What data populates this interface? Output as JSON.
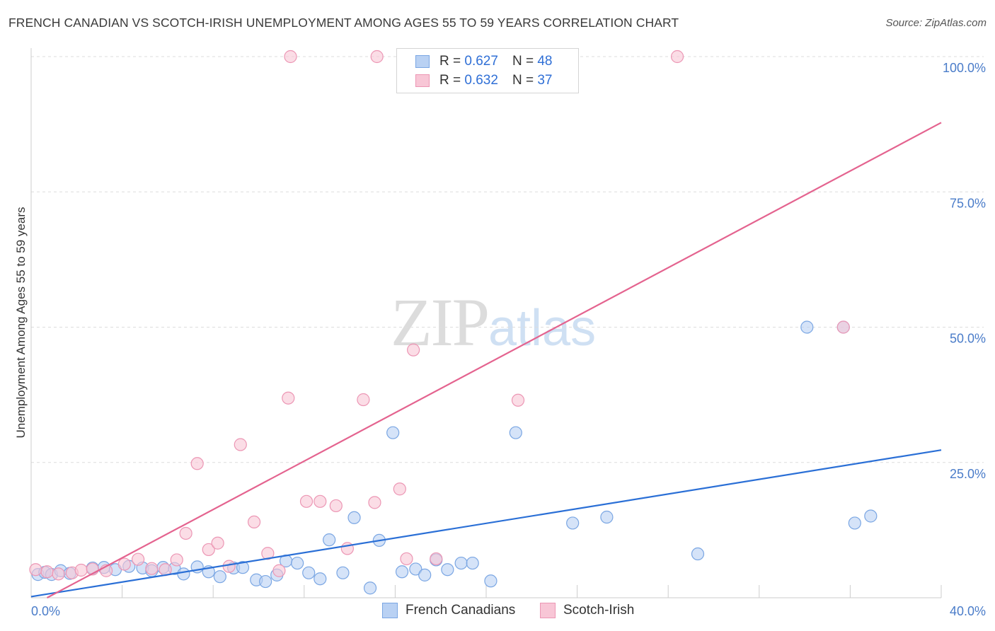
{
  "title": "FRENCH CANADIAN VS SCOTCH-IRISH UNEMPLOYMENT AMONG AGES 55 TO 59 YEARS CORRELATION CHART",
  "source": "Source: ZipAtlas.com",
  "watermark": {
    "zip": "ZIP",
    "atlas": "atlas"
  },
  "legend_top": {
    "rows": [
      {
        "r_label": "R = ",
        "r_value": "0.627",
        "n_label": "N = ",
        "n_value": "48"
      },
      {
        "r_label": "R = ",
        "r_value": "0.632",
        "n_label": "N = ",
        "n_value": "37"
      }
    ]
  },
  "legend_bottom": {
    "series1": "French Canadians",
    "series2": "Scotch-Irish"
  },
  "colors": {
    "blue_fill": "#b9d1f3",
    "blue_stroke": "#7aa6e3",
    "blue_line": "#2a6fd6",
    "pink_fill": "#f8c6d6",
    "pink_stroke": "#ec96b4",
    "pink_line": "#e4638f",
    "tick_text": "#4a7cc9",
    "grid": "#dddddd"
  },
  "chart_data": {
    "type": "scatter",
    "xlabel": "",
    "ylabel": "Unemployment Among Ages 55 to 59 years",
    "xlim": [
      0,
      40
    ],
    "ylim": [
      0,
      100
    ],
    "x_tick_labels": [
      "0.0%",
      "40.0%"
    ],
    "y_ticks": [
      25,
      50,
      75,
      100
    ],
    "y_tick_labels": [
      "25.0%",
      "50.0%",
      "75.0%",
      "100.0%"
    ],
    "grid": true,
    "series": [
      {
        "name": "French Canadians",
        "points": [
          [
            0.3,
            4.3
          ],
          [
            0.6,
            4.7
          ],
          [
            0.9,
            4.3
          ],
          [
            1.3,
            5.0
          ],
          [
            1.7,
            4.5
          ],
          [
            2.7,
            5.5
          ],
          [
            3.2,
            5.6
          ],
          [
            3.7,
            5.2
          ],
          [
            4.3,
            5.8
          ],
          [
            4.9,
            5.5
          ],
          [
            5.3,
            5.0
          ],
          [
            5.8,
            5.6
          ],
          [
            6.3,
            5.4
          ],
          [
            6.7,
            4.4
          ],
          [
            7.3,
            5.7
          ],
          [
            7.8,
            4.8
          ],
          [
            8.3,
            3.9
          ],
          [
            8.9,
            5.5
          ],
          [
            9.3,
            5.6
          ],
          [
            9.9,
            3.3
          ],
          [
            10.3,
            3.0
          ],
          [
            10.8,
            4.2
          ],
          [
            11.2,
            6.8
          ],
          [
            11.7,
            6.4
          ],
          [
            12.2,
            4.6
          ],
          [
            12.7,
            3.5
          ],
          [
            13.1,
            10.7
          ],
          [
            13.7,
            4.6
          ],
          [
            14.2,
            14.8
          ],
          [
            14.9,
            1.8
          ],
          [
            15.3,
            10.6
          ],
          [
            15.9,
            30.5
          ],
          [
            16.3,
            4.8
          ],
          [
            16.9,
            5.3
          ],
          [
            17.3,
            4.2
          ],
          [
            17.8,
            7.0
          ],
          [
            18.3,
            5.2
          ],
          [
            18.9,
            6.4
          ],
          [
            19.4,
            6.4
          ],
          [
            20.2,
            3.1
          ],
          [
            21.3,
            30.5
          ],
          [
            23.8,
            13.8
          ],
          [
            25.3,
            14.9
          ],
          [
            29.3,
            8.1
          ],
          [
            34.1,
            50.0
          ],
          [
            35.7,
            50.0
          ],
          [
            36.2,
            13.8
          ],
          [
            36.9,
            15.1
          ]
        ]
      },
      {
        "name": "Scotch-Irish",
        "points": [
          [
            0.2,
            5.2
          ],
          [
            0.7,
            4.8
          ],
          [
            1.2,
            4.4
          ],
          [
            1.8,
            4.6
          ],
          [
            2.2,
            5.1
          ],
          [
            2.7,
            5.3
          ],
          [
            3.3,
            5.0
          ],
          [
            4.1,
            6.2
          ],
          [
            4.7,
            7.1
          ],
          [
            5.3,
            5.4
          ],
          [
            5.9,
            5.2
          ],
          [
            6.4,
            7.0
          ],
          [
            6.8,
            11.9
          ],
          [
            7.3,
            24.8
          ],
          [
            7.8,
            8.9
          ],
          [
            8.2,
            10.1
          ],
          [
            8.7,
            5.8
          ],
          [
            9.2,
            28.3
          ],
          [
            9.8,
            14.0
          ],
          [
            10.4,
            8.2
          ],
          [
            10.9,
            5.0
          ],
          [
            11.3,
            36.9
          ],
          [
            11.4,
            100.0
          ],
          [
            12.1,
            17.8
          ],
          [
            12.7,
            17.8
          ],
          [
            13.4,
            17.0
          ],
          [
            13.9,
            9.1
          ],
          [
            14.6,
            36.6
          ],
          [
            15.1,
            17.6
          ],
          [
            16.2,
            20.1
          ],
          [
            16.8,
            45.8
          ],
          [
            17.8,
            7.2
          ],
          [
            21.4,
            36.5
          ],
          [
            28.4,
            100.0
          ],
          [
            35.7,
            50.0
          ],
          [
            16.5,
            7.2
          ],
          [
            15.2,
            100.0
          ]
        ]
      }
    ],
    "trendlines": [
      {
        "series": "French Canadians",
        "x": [
          0,
          40
        ],
        "y": [
          0.2,
          27.3
        ]
      },
      {
        "series": "Scotch-Irish",
        "x": [
          0.7,
          40
        ],
        "y": [
          0,
          87.8
        ]
      }
    ]
  }
}
